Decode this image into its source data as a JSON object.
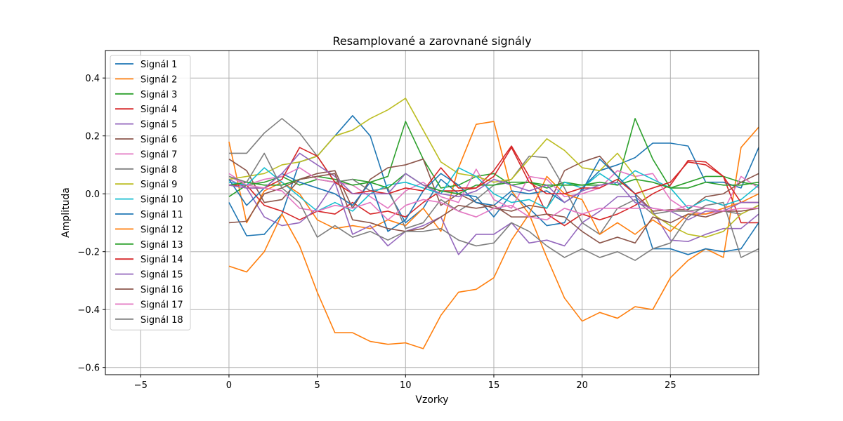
{
  "chart_data": {
    "type": "line",
    "title": "Resamplované a zarovnané signály",
    "xlabel": "Vzorky",
    "ylabel": "Amplituda",
    "xlim": [
      -7,
      30
    ],
    "ylim": [
      -0.625,
      0.495
    ],
    "xticks": [
      -5,
      0,
      5,
      10,
      15,
      20,
      25
    ],
    "yticks": [
      -0.6,
      -0.4,
      -0.2,
      0.0,
      0.2,
      0.4
    ],
    "ytick_labels": [
      "−0.6",
      "−0.4",
      "−0.2",
      "0.0",
      "0.2",
      "0.4"
    ],
    "xtick_labels": [
      "−5",
      "0",
      "5",
      "10",
      "15",
      "20",
      "25"
    ],
    "grid": true,
    "legend_position": "top-left",
    "x": [
      0,
      1,
      2,
      3,
      4,
      5,
      6,
      7,
      8,
      9,
      10,
      11,
      12,
      13,
      14,
      15,
      16,
      17,
      18,
      19,
      20,
      21,
      22,
      23,
      24,
      25,
      26,
      27,
      28,
      29,
      30
    ],
    "series": [
      {
        "name": "Signál 1",
        "color": "#1f77b4",
        "values": [
          -0.03,
          -0.145,
          -0.14,
          -0.07,
          0.11,
          0.13,
          0.2,
          0.27,
          0.2,
          0.01,
          -0.1,
          -0.05,
          0.05,
          0.0,
          -0.01,
          -0.08,
          0.0,
          -0.05,
          -0.11,
          -0.1,
          0.02,
          0.08,
          0.1,
          0.125,
          0.175,
          0.175,
          0.165,
          0.04,
          0.04,
          0.02,
          0.16
        ]
      },
      {
        "name": "Signál 2",
        "color": "#ff7f0e",
        "values": [
          0.18,
          -0.1,
          0.01,
          0.04,
          0.0,
          -0.09,
          -0.12,
          -0.11,
          -0.12,
          -0.09,
          -0.11,
          -0.05,
          -0.13,
          0.09,
          0.24,
          0.25,
          0.01,
          -0.07,
          -0.22,
          -0.36,
          -0.44,
          -0.41,
          -0.43,
          -0.39,
          -0.4,
          -0.29,
          -0.23,
          -0.19,
          -0.22,
          0.16,
          0.23
        ]
      },
      {
        "name": "Signál 3",
        "color": "#2ca02c",
        "values": [
          -0.01,
          0.03,
          0.04,
          0.06,
          0.03,
          0.05,
          0.04,
          0.05,
          0.04,
          0.06,
          0.25,
          0.12,
          0.02,
          0.03,
          0.06,
          0.07,
          0.03,
          0.04,
          0.02,
          0.04,
          0.03,
          0.03,
          0.04,
          0.26,
          0.12,
          0.02,
          0.04,
          0.06,
          0.06,
          0.04,
          0.03
        ]
      },
      {
        "name": "Signál 4",
        "color": "#d62728",
        "values": [
          0.03,
          0.03,
          -0.04,
          -0.06,
          -0.09,
          -0.06,
          -0.07,
          -0.03,
          -0.07,
          -0.06,
          -0.08,
          -0.03,
          0.01,
          0.01,
          0.02,
          0.08,
          0.165,
          0.06,
          -0.07,
          -0.11,
          -0.07,
          -0.09,
          -0.07,
          -0.04,
          0.0,
          0.03,
          0.115,
          0.11,
          0.06,
          -0.1,
          -0.1
        ]
      },
      {
        "name": "Signál 5",
        "color": "#9467bd",
        "values": [
          0.05,
          0.02,
          -0.08,
          -0.11,
          -0.1,
          -0.05,
          0.04,
          -0.14,
          -0.11,
          -0.18,
          -0.13,
          -0.11,
          -0.08,
          -0.21,
          -0.14,
          -0.14,
          -0.1,
          -0.17,
          -0.16,
          -0.18,
          -0.1,
          -0.06,
          -0.01,
          -0.01,
          -0.06,
          -0.16,
          -0.165,
          -0.14,
          -0.12,
          -0.12,
          -0.07
        ]
      },
      {
        "name": "Signál 6",
        "color": "#8c564b",
        "values": [
          0.12,
          0.08,
          -0.03,
          -0.02,
          0.05,
          0.07,
          0.08,
          -0.05,
          0.05,
          0.09,
          0.1,
          0.12,
          -0.04,
          0.0,
          -0.03,
          -0.05,
          -0.06,
          -0.04,
          -0.05,
          0.08,
          0.11,
          0.13,
          0.06,
          0.0,
          -0.06,
          -0.055,
          -0.055,
          -0.01,
          0.0,
          0.04,
          0.07
        ]
      },
      {
        "name": "Signál 7",
        "color": "#e377c2",
        "values": [
          0.06,
          0.03,
          0.05,
          0.06,
          0.09,
          0.05,
          0.04,
          0.03,
          -0.01,
          -0.05,
          0.01,
          0.04,
          -0.01,
          -0.03,
          0.085,
          -0.02,
          -0.05,
          0.06,
          0.05,
          -0.01,
          0.0,
          0.02,
          0.08,
          0.06,
          0.07,
          -0.02,
          -0.06,
          -0.07,
          -0.06,
          0.06,
          0.02
        ]
      },
      {
        "name": "Signál 8",
        "color": "#7f7f7f",
        "values": [
          0.14,
          0.14,
          0.21,
          0.26,
          0.21,
          0.13,
          0.04,
          0.05,
          0.01,
          0.02,
          -0.12,
          -0.1,
          -0.02,
          -0.06,
          -0.02,
          0.03,
          0.05,
          0.13,
          0.125,
          0.02,
          -0.1,
          -0.14,
          -0.05,
          -0.02,
          -0.07,
          -0.06,
          -0.06,
          -0.05,
          -0.06,
          -0.07,
          -0.04
        ]
      },
      {
        "name": "Signál 9",
        "color": "#bcbd22",
        "values": [
          0.05,
          0.06,
          0.07,
          0.1,
          0.11,
          0.13,
          0.2,
          0.22,
          0.26,
          0.29,
          0.33,
          0.22,
          0.11,
          0.07,
          0.06,
          0.04,
          0.05,
          0.12,
          0.19,
          0.15,
          0.09,
          0.08,
          0.14,
          0.06,
          -0.07,
          -0.11,
          -0.14,
          -0.15,
          -0.13,
          -0.07,
          -0.04
        ]
      },
      {
        "name": "Signál 10",
        "color": "#17becf",
        "values": [
          0.04,
          0.03,
          0.09,
          0.04,
          -0.01,
          -0.06,
          -0.03,
          -0.06,
          0.0,
          0.03,
          0.04,
          0.02,
          0.0,
          0.09,
          0.06,
          0.0,
          -0.03,
          -0.02,
          -0.05,
          0.04,
          0.02,
          0.07,
          0.03,
          0.08,
          0.05,
          0.02,
          -0.05,
          -0.02,
          -0.04,
          -0.02,
          0.03
        ]
      },
      {
        "name": "Signál 11",
        "color": "#1f77b4",
        "values": [
          0.05,
          -0.04,
          0.02,
          0.07,
          0.04,
          0.02,
          0.0,
          -0.04,
          0.04,
          -0.13,
          -0.09,
          0.01,
          0.07,
          0.03,
          -0.03,
          -0.04,
          0.01,
          0.0,
          0.01,
          -0.03,
          0.01,
          0.12,
          0.06,
          0.0,
          -0.19,
          -0.19,
          -0.21,
          -0.19,
          -0.2,
          -0.19,
          -0.1
        ]
      },
      {
        "name": "Signál 12",
        "color": "#ff7f0e",
        "values": [
          -0.25,
          -0.27,
          -0.2,
          -0.07,
          -0.18,
          -0.34,
          -0.48,
          -0.48,
          -0.51,
          -0.52,
          -0.515,
          -0.535,
          -0.42,
          -0.34,
          -0.33,
          -0.29,
          -0.16,
          -0.07,
          0.06,
          0.0,
          -0.02,
          -0.14,
          -0.1,
          -0.14,
          -0.09,
          -0.13,
          -0.07,
          -0.07,
          -0.05,
          -0.03,
          0.0
        ]
      },
      {
        "name": "Signál 13",
        "color": "#2ca02c",
        "values": [
          0.03,
          0.04,
          0.03,
          0.03,
          0.05,
          0.06,
          0.05,
          0.03,
          0.04,
          0.02,
          0.07,
          0.03,
          0.01,
          0.0,
          0.03,
          0.03,
          0.04,
          0.04,
          0.03,
          0.03,
          0.03,
          0.04,
          0.03,
          0.05,
          0.04,
          0.02,
          0.02,
          0.04,
          0.03,
          0.03,
          0.04
        ]
      },
      {
        "name": "Signál 14",
        "color": "#d62728",
        "values": [
          0.03,
          0.02,
          0.02,
          0.05,
          0.16,
          0.13,
          0.04,
          0.0,
          0.01,
          0.0,
          0.02,
          0.01,
          0.09,
          0.02,
          0.02,
          0.06,
          0.16,
          0.04,
          0.0,
          0.0,
          0.02,
          0.02,
          0.05,
          0.0,
          0.02,
          0.04,
          0.11,
          0.1,
          0.06,
          -0.03,
          -0.03
        ]
      },
      {
        "name": "Signál 15",
        "color": "#9467bd",
        "values": [
          0.03,
          0.02,
          0.02,
          0.07,
          0.14,
          0.1,
          0.06,
          0.0,
          0.0,
          0.0,
          0.07,
          0.03,
          0.0,
          -0.01,
          0.01,
          0.05,
          0.03,
          0.01,
          0.03,
          -0.03,
          0.01,
          0.03,
          0.04,
          -0.03,
          -0.05,
          -0.06,
          -0.09,
          -0.06,
          -0.06,
          -0.03,
          -0.03
        ]
      },
      {
        "name": "Signál 16",
        "color": "#8c564b",
        "values": [
          -0.1,
          -0.095,
          0.0,
          0.02,
          0.05,
          0.06,
          0.07,
          -0.09,
          -0.1,
          -0.12,
          -0.13,
          -0.12,
          -0.08,
          -0.04,
          -0.05,
          -0.04,
          -0.08,
          -0.08,
          -0.07,
          -0.08,
          -0.13,
          -0.17,
          -0.15,
          -0.17,
          -0.08,
          -0.1,
          -0.07,
          -0.08,
          -0.06,
          -0.06,
          -0.05
        ]
      },
      {
        "name": "Signál 17",
        "color": "#e377c2",
        "values": [
          0.07,
          0.03,
          0.02,
          0.01,
          -0.05,
          -0.06,
          -0.04,
          -0.05,
          -0.03,
          -0.09,
          -0.04,
          -0.02,
          -0.03,
          -0.06,
          -0.08,
          -0.05,
          -0.04,
          -0.08,
          -0.09,
          -0.05,
          -0.07,
          -0.05,
          -0.05,
          -0.05,
          -0.05,
          -0.06,
          -0.04,
          -0.05,
          -0.06,
          -0.05,
          -0.05
        ]
      },
      {
        "name": "Signál 18",
        "color": "#7f7f7f",
        "values": [
          0.06,
          0.04,
          0.14,
          0.02,
          -0.03,
          -0.15,
          -0.11,
          -0.15,
          -0.13,
          -0.16,
          -0.13,
          -0.13,
          -0.12,
          -0.16,
          -0.18,
          -0.17,
          -0.1,
          -0.13,
          -0.18,
          -0.22,
          -0.19,
          -0.22,
          -0.2,
          -0.23,
          -0.19,
          -0.17,
          -0.08,
          -0.04,
          -0.03,
          -0.22,
          -0.19
        ]
      }
    ]
  }
}
